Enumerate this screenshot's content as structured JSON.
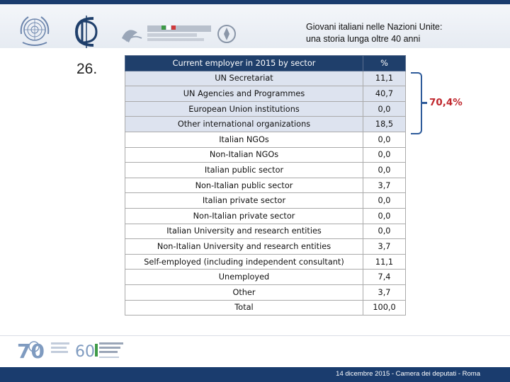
{
  "header": {
    "title_line1": "Giovani italiani nelle Nazioni Unite:",
    "title_line2": "una storia lunga oltre 40 anni",
    "logos": [
      "un-emblem-icon",
      "dc-monogram-icon",
      "cooperazione-italiana-logo",
      "italy-emblem-icon"
    ]
  },
  "slide_number": "26.",
  "table": {
    "headers": {
      "sector": "Current employer in 2015 by sector",
      "percent": "%"
    },
    "rows": [
      {
        "label": "UN Secretariat",
        "value": "11,1"
      },
      {
        "label": "UN Agencies and Programmes",
        "value": "40,7"
      },
      {
        "label": "European Union institutions",
        "value": "0,0"
      },
      {
        "label": "Other international organizations",
        "value": "18,5"
      },
      {
        "label": "Italian NGOs",
        "value": "0,0"
      },
      {
        "label": "Non-Italian NGOs",
        "value": "0,0"
      },
      {
        "label": "Italian public sector",
        "value": "0,0"
      },
      {
        "label": "Non-Italian public sector",
        "value": "3,7"
      },
      {
        "label": "Italian private sector",
        "value": "0,0"
      },
      {
        "label": "Non-Italian private sector",
        "value": "0,0"
      },
      {
        "label": "Italian University and research entities",
        "value": "0,0"
      },
      {
        "label": "Non-Italian University and research entities",
        "value": "3,7"
      },
      {
        "label": "Self-employed (including independent consultant)",
        "value": "11,1"
      },
      {
        "label": "Unemployed",
        "value": "7,4"
      },
      {
        "label": "Other",
        "value": "3,7"
      },
      {
        "label": "Total",
        "value": "100,0"
      }
    ],
    "shaded_rows": 4
  },
  "bracket_total": "70,4%",
  "footer": {
    "text": "14 dicembre 2015 - Camera dei deputati - Roma",
    "logos": [
      "un70-logo",
      "italy-60-un-logo"
    ]
  },
  "colors": {
    "header_bar": "#1a3c6e",
    "table_header": "#1f3f6b",
    "shaded_row": "#dde3ef",
    "bracket": "#2e5b9a",
    "highlight": "#c0282e"
  }
}
